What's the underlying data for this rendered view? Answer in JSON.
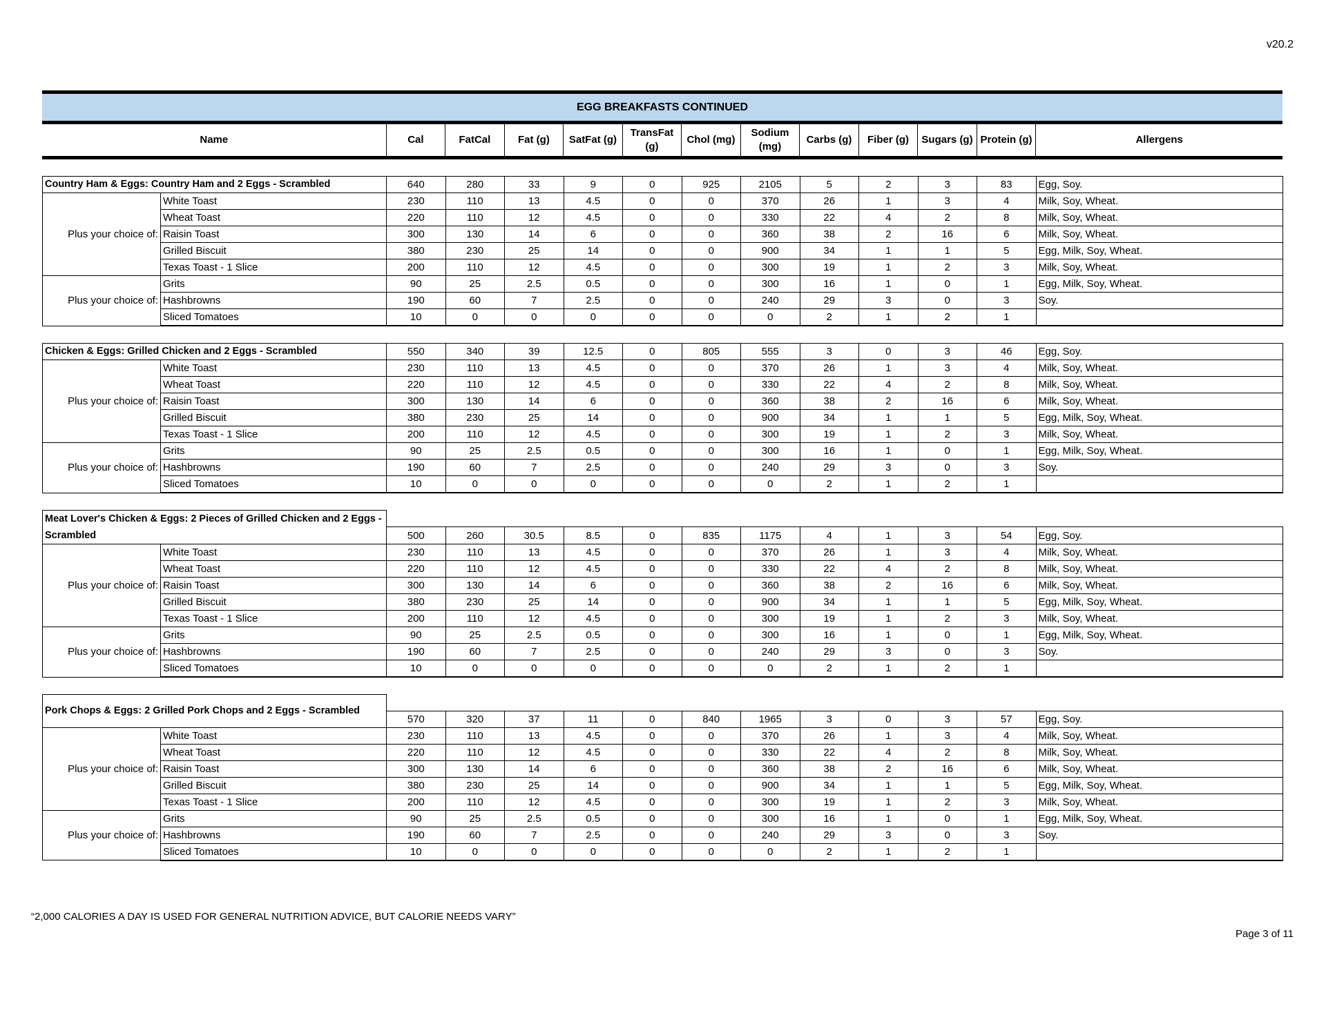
{
  "version": "v20.2",
  "title": "EGG BREAKFASTS CONTINUED",
  "columns": [
    "Name",
    "Cal",
    "FatCal",
    "Fat (g)",
    "SatFat (g)",
    "TransFat (g)",
    "Chol (mg)",
    "Sodium (mg)",
    "Carbs (g)",
    "Fiber (g)",
    "Sugars (g)",
    "Protein (g)",
    "Allergens"
  ],
  "band_color": "#bdd7ee",
  "choice_label": "Plus your choice of:",
  "sections": [
    {
      "name": "Country Ham & Eggs: Country Ham and 2 Eggs - Scrambled",
      "two_line": false,
      "values": [
        "640",
        "280",
        "33",
        "9",
        "0",
        "925",
        "2105",
        "5",
        "2",
        "3",
        "83"
      ],
      "allergens": "Egg, Soy."
    },
    {
      "name": "Chicken & Eggs: Grilled Chicken and 2 Eggs - Scrambled",
      "two_line": false,
      "values": [
        "550",
        "340",
        "39",
        "12.5",
        "0",
        "805",
        "555",
        "3",
        "0",
        "3",
        "46"
      ],
      "allergens": "Egg, Soy."
    },
    {
      "name": "Meat Lover's Chicken & Eggs: 2 Pieces of Grilled Chicken and 2 Eggs - Scrambled",
      "two_line": true,
      "values": [
        "500",
        "260",
        "30.5",
        "8.5",
        "0",
        "835",
        "1175",
        "4",
        "1",
        "3",
        "54"
      ],
      "allergens": "Egg, Soy."
    },
    {
      "name": "Pork Chops & Eggs: 2 Grilled Pork Chops and 2 Eggs - Scrambled",
      "two_line": true,
      "values": [
        "570",
        "320",
        "37",
        "11",
        "0",
        "840",
        "1965",
        "3",
        "0",
        "3",
        "57"
      ],
      "allergens": "Egg, Soy."
    }
  ],
  "bread_choices": [
    {
      "name": "White Toast",
      "values": [
        "230",
        "110",
        "13",
        "4.5",
        "0",
        "0",
        "370",
        "26",
        "1",
        "3",
        "4"
      ],
      "allergens": "Milk, Soy, Wheat."
    },
    {
      "name": "Wheat Toast",
      "values": [
        "220",
        "110",
        "12",
        "4.5",
        "0",
        "0",
        "330",
        "22",
        "4",
        "2",
        "8"
      ],
      "allergens": "Milk, Soy, Wheat."
    },
    {
      "name": "Raisin Toast",
      "values": [
        "300",
        "130",
        "14",
        "6",
        "0",
        "0",
        "360",
        "38",
        "2",
        "16",
        "6"
      ],
      "allergens": "Milk, Soy, Wheat."
    },
    {
      "name": "Grilled Biscuit",
      "values": [
        "380",
        "230",
        "25",
        "14",
        "0",
        "0",
        "900",
        "34",
        "1",
        "1",
        "5"
      ],
      "allergens": "Egg, Milk, Soy, Wheat."
    },
    {
      "name": "Texas Toast - 1 Slice",
      "values": [
        "200",
        "110",
        "12",
        "4.5",
        "0",
        "0",
        "300",
        "19",
        "1",
        "2",
        "3"
      ],
      "allergens": "Milk, Soy, Wheat."
    }
  ],
  "side_choices": [
    {
      "name": "Grits",
      "values": [
        "90",
        "25",
        "2.5",
        "0.5",
        "0",
        "0",
        "300",
        "16",
        "1",
        "0",
        "1"
      ],
      "allergens": "Egg, Milk, Soy, Wheat."
    },
    {
      "name": "Hashbrowns",
      "values": [
        "190",
        "60",
        "7",
        "2.5",
        "0",
        "0",
        "240",
        "29",
        "3",
        "0",
        "3"
      ],
      "allergens": "Soy."
    },
    {
      "name": "Sliced Tomatoes",
      "values": [
        "10",
        "0",
        "0",
        "0",
        "0",
        "0",
        "0",
        "2",
        "1",
        "2",
        "1"
      ],
      "allergens": ""
    }
  ],
  "footer_note": "“2,000 CALORIES A DAY IS USED FOR GENERAL NUTRITION ADVICE, BUT CALORIE NEEDS VARY”",
  "page_number": "Page 3 of 11"
}
